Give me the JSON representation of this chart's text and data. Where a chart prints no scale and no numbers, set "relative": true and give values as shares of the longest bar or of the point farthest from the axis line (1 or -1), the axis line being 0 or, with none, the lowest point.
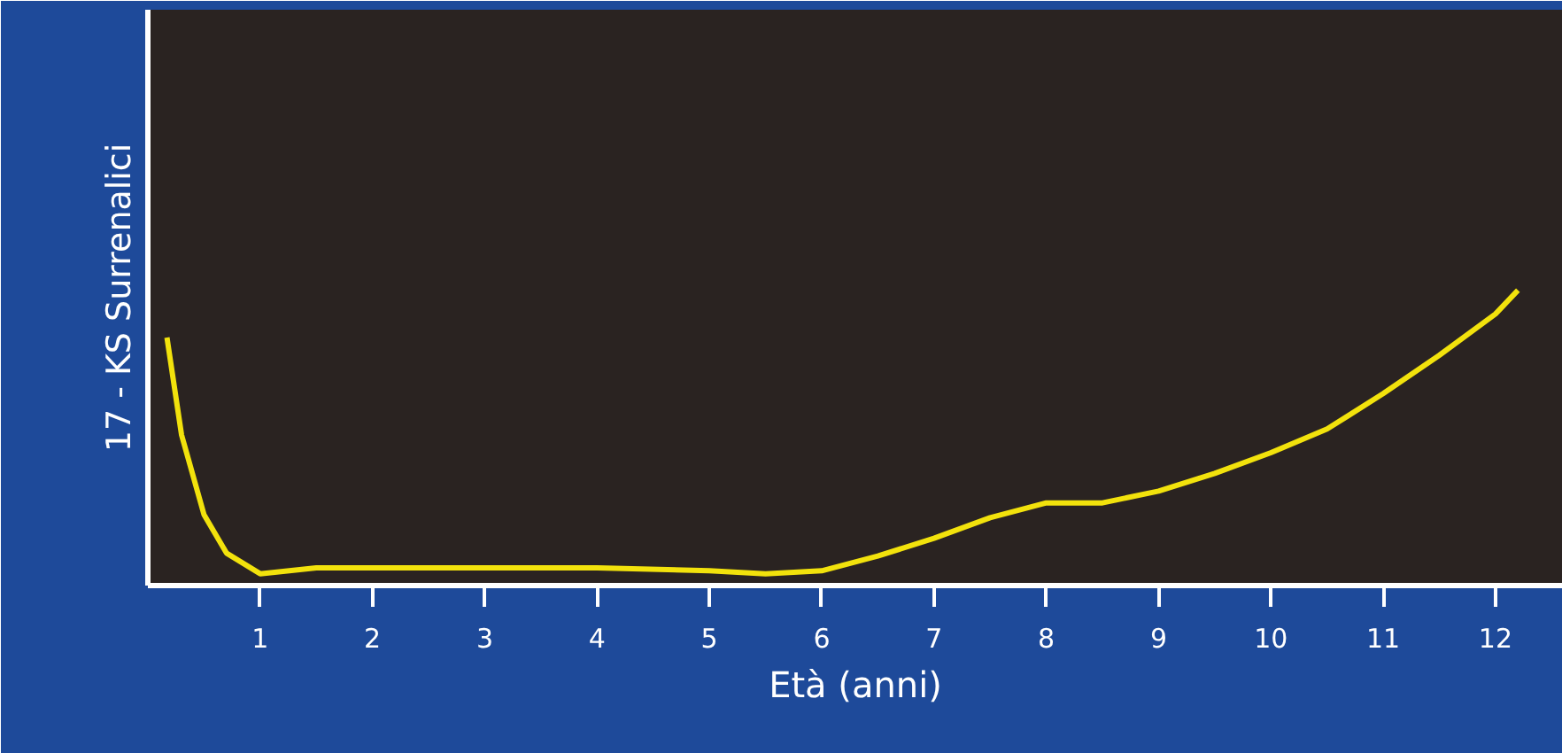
{
  "chart_data": {
    "type": "line",
    "relative": true,
    "xlabel": "Età (anni)",
    "ylabel": "17 - KS Surrenalici",
    "xlim": [
      0,
      12.6
    ],
    "xticks": [
      1,
      2,
      3,
      4,
      5,
      6,
      7,
      8,
      9,
      10,
      11,
      12
    ],
    "marker": "none",
    "line_style": "solid",
    "series": [
      {
        "color": "#f2e20c",
        "x": [
          0.17,
          0.3,
          0.5,
          0.7,
          1.0,
          1.5,
          2,
          3,
          4,
          5,
          5.5,
          6,
          6.5,
          7,
          7.5,
          8,
          8.5,
          9,
          9.5,
          10,
          10.5,
          11,
          11.5,
          12,
          12.2
        ],
        "values": [
          0.84,
          0.51,
          0.24,
          0.11,
          0.04,
          0.06,
          0.06,
          0.06,
          0.06,
          0.05,
          0.04,
          0.05,
          0.1,
          0.16,
          0.23,
          0.28,
          0.28,
          0.32,
          0.38,
          0.45,
          0.53,
          0.65,
          0.78,
          0.92,
          1
        ]
      }
    ]
  }
}
